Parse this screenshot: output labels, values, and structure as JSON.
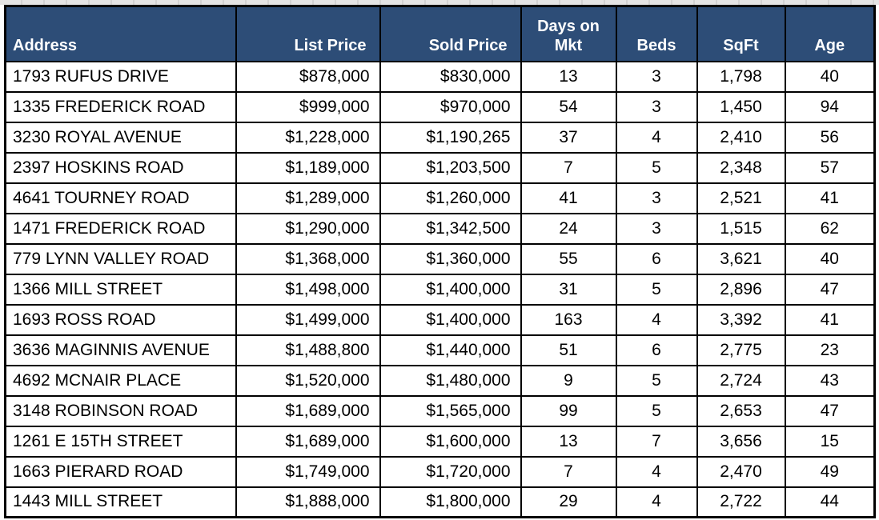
{
  "colors": {
    "header_bg": "#2D4D77",
    "header_text": "#FFFFFF",
    "cell_bg": "#FFFFFF",
    "cell_text": "#000000",
    "border": "#000000",
    "top_strip": "#E4E4E4"
  },
  "table": {
    "columns": [
      {
        "key": "address",
        "label": "Address",
        "align": "left"
      },
      {
        "key": "list_price",
        "label": "List Price",
        "align": "right"
      },
      {
        "key": "sold_price",
        "label": "Sold Price",
        "align": "right"
      },
      {
        "key": "days_on_mkt",
        "label": "Days on Mkt",
        "align": "center"
      },
      {
        "key": "beds",
        "label": "Beds",
        "align": "center"
      },
      {
        "key": "sqft",
        "label": "SqFt",
        "align": "center"
      },
      {
        "key": "age",
        "label": "Age",
        "align": "center"
      }
    ],
    "rows": [
      {
        "address": "1793 RUFUS DRIVE",
        "list_price": "$878,000",
        "sold_price": "$830,000",
        "days_on_mkt": "13",
        "beds": "3",
        "sqft": "1,798",
        "age": "40"
      },
      {
        "address": "1335 FREDERICK ROAD",
        "list_price": "$999,000",
        "sold_price": "$970,000",
        "days_on_mkt": "54",
        "beds": "3",
        "sqft": "1,450",
        "age": "94"
      },
      {
        "address": "3230 ROYAL AVENUE",
        "list_price": "$1,228,000",
        "sold_price": "$1,190,265",
        "days_on_mkt": "37",
        "beds": "4",
        "sqft": "2,410",
        "age": "56"
      },
      {
        "address": "2397 HOSKINS ROAD",
        "list_price": "$1,189,000",
        "sold_price": "$1,203,500",
        "days_on_mkt": "7",
        "beds": "5",
        "sqft": "2,348",
        "age": "57"
      },
      {
        "address": "4641 TOURNEY ROAD",
        "list_price": "$1,289,000",
        "sold_price": "$1,260,000",
        "days_on_mkt": "41",
        "beds": "3",
        "sqft": "2,521",
        "age": "41"
      },
      {
        "address": "1471 FREDERICK ROAD",
        "list_price": "$1,290,000",
        "sold_price": "$1,342,500",
        "days_on_mkt": "24",
        "beds": "3",
        "sqft": "1,515",
        "age": "62"
      },
      {
        "address": "779 LYNN VALLEY ROAD",
        "list_price": "$1,368,000",
        "sold_price": "$1,360,000",
        "days_on_mkt": "55",
        "beds": "6",
        "sqft": "3,621",
        "age": "40"
      },
      {
        "address": "1366 MILL STREET",
        "list_price": "$1,498,000",
        "sold_price": "$1,400,000",
        "days_on_mkt": "31",
        "beds": "5",
        "sqft": "2,896",
        "age": "47"
      },
      {
        "address": "1693 ROSS ROAD",
        "list_price": "$1,499,000",
        "sold_price": "$1,400,000",
        "days_on_mkt": "163",
        "beds": "4",
        "sqft": "3,392",
        "age": "41"
      },
      {
        "address": "3636 MAGINNIS AVENUE",
        "list_price": "$1,488,800",
        "sold_price": "$1,440,000",
        "days_on_mkt": "51",
        "beds": "6",
        "sqft": "2,775",
        "age": "23"
      },
      {
        "address": "4692 MCNAIR PLACE",
        "list_price": "$1,520,000",
        "sold_price": "$1,480,000",
        "days_on_mkt": "9",
        "beds": "5",
        "sqft": "2,724",
        "age": "43"
      },
      {
        "address": "3148 ROBINSON ROAD",
        "list_price": "$1,689,000",
        "sold_price": "$1,565,000",
        "days_on_mkt": "99",
        "beds": "5",
        "sqft": "2,653",
        "age": "47"
      },
      {
        "address": "1261 E 15TH STREET",
        "list_price": "$1,689,000",
        "sold_price": "$1,600,000",
        "days_on_mkt": "13",
        "beds": "7",
        "sqft": "3,656",
        "age": "15"
      },
      {
        "address": "1663 PIERARD ROAD",
        "list_price": "$1,749,000",
        "sold_price": "$1,720,000",
        "days_on_mkt": "7",
        "beds": "4",
        "sqft": "2,470",
        "age": "49"
      },
      {
        "address": "1443 MILL STREET",
        "list_price": "$1,888,000",
        "sold_price": "$1,800,000",
        "days_on_mkt": "29",
        "beds": "4",
        "sqft": "2,722",
        "age": "44"
      }
    ]
  }
}
